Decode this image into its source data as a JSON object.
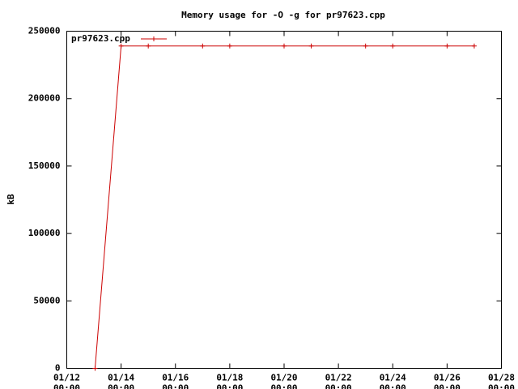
{
  "chart_data": {
    "type": "line",
    "title": "Memory usage for -O -g for pr97623.cpp",
    "y_label": "kB",
    "x": [
      "01/13 01:00",
      "01/14 00:00",
      "01/15 00:00",
      "01/17 00:00",
      "01/18 00:00",
      "01/20 00:00",
      "01/21 00:00",
      "01/23 00:00",
      "01/24 00:00",
      "01/26 00:00",
      "01/27 00:00"
    ],
    "series": [
      {
        "name": "pr97623.cpp",
        "color": "#cc0000",
        "values": [
          0,
          239000,
          239000,
          239000,
          239000,
          239000,
          239000,
          239000,
          239000,
          239000,
          239000
        ]
      }
    ],
    "xlim": [
      "01/12 00:00",
      "01/28 00:00"
    ],
    "xticks": [
      [
        "01/12",
        "00:00"
      ],
      [
        "01/14",
        "00:00"
      ],
      [
        "01/16",
        "00:00"
      ],
      [
        "01/18",
        "00:00"
      ],
      [
        "01/20",
        "00:00"
      ],
      [
        "01/22",
        "00:00"
      ],
      [
        "01/24",
        "00:00"
      ],
      [
        "01/26",
        "00:00"
      ],
      [
        "01/28",
        "00:00"
      ]
    ],
    "ylim": [
      0,
      250000
    ],
    "yticks": [
      0,
      50000,
      100000,
      150000,
      200000,
      250000
    ],
    "legend": "top-left"
  }
}
